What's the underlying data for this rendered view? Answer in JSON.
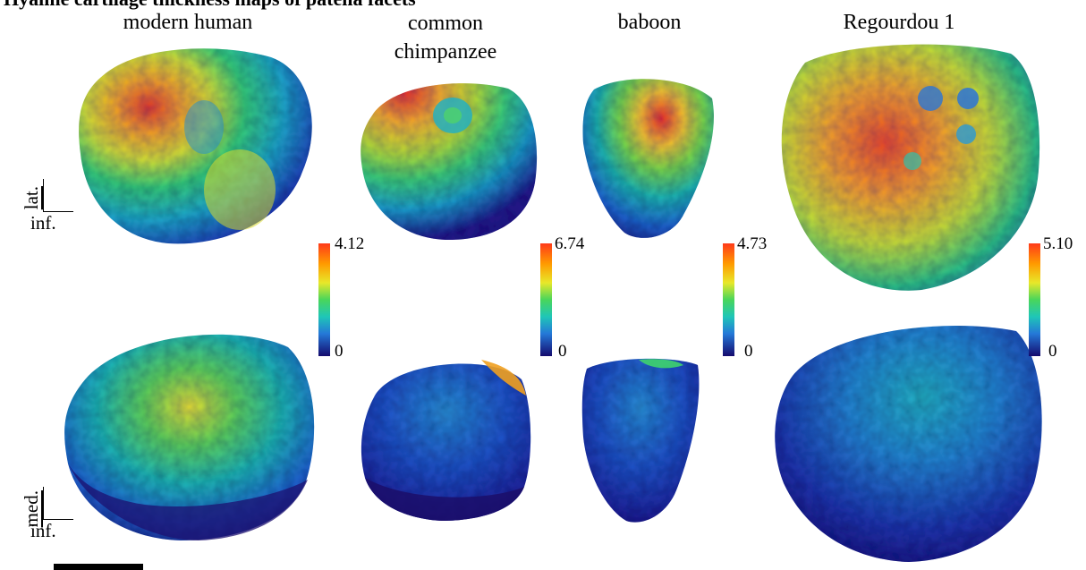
{
  "figure": {
    "title": "Hyaline cartilage thickness maps of patella facets",
    "columns": [
      "modern human",
      "common chimpanzee",
      "baboon",
      "Regourdou 1"
    ],
    "views": {
      "top": {
        "first": "lat.",
        "second": "inf."
      },
      "bottom": {
        "first": "med.",
        "second": "inf."
      }
    },
    "scales": [
      {
        "max": "4.12",
        "min": "0"
      },
      {
        "max": "6.74",
        "min": "0"
      },
      {
        "max": "4.73",
        "min": "0"
      },
      {
        "max": "5.10",
        "min": "0"
      }
    ],
    "colormap": [
      "#8b0000",
      "#ff3a1a",
      "#ff9a00",
      "#f6e52a",
      "#8fde3a",
      "#1fd28b",
      "#1fb7c7",
      "#2472d8",
      "#1d2fb0",
      "#150b6e"
    ]
  }
}
